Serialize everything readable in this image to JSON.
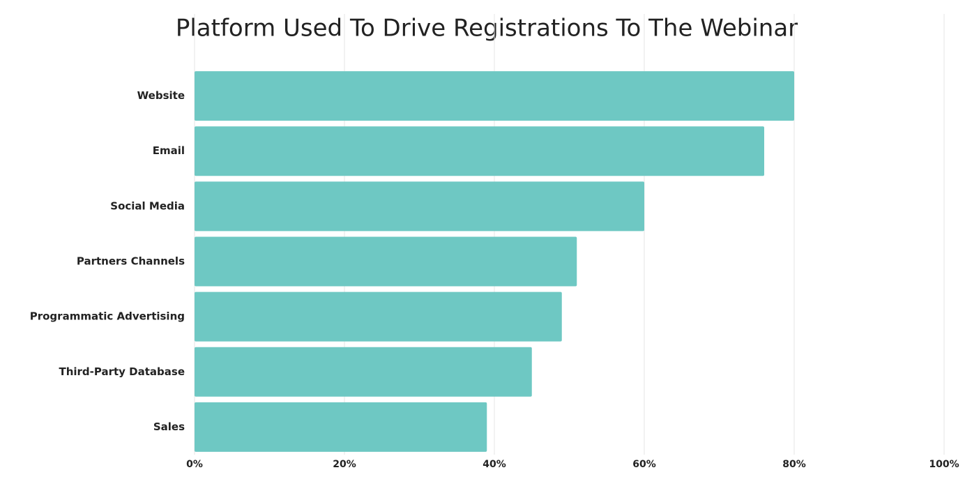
{
  "chart_data": {
    "type": "hbar",
    "title": "Platform Used To Drive Registrations To The Webinar",
    "categories": [
      "Website",
      "Email",
      "Social Media",
      "Partners Channels",
      "Programmatic Advertising",
      "Third-Party Database",
      "Sales"
    ],
    "values": [
      80,
      76,
      60,
      51,
      49,
      45,
      39
    ],
    "color": "#6ec8c3",
    "xlim": [
      0,
      100
    ],
    "xticks": [
      {
        "value": 0,
        "label": "0%"
      },
      {
        "value": 20,
        "label": "20%"
      },
      {
        "value": 40,
        "label": "40%"
      },
      {
        "value": 60,
        "label": "60%"
      },
      {
        "value": 80,
        "label": "80%"
      },
      {
        "value": 100,
        "label": "100%"
      }
    ],
    "grid": true
  }
}
